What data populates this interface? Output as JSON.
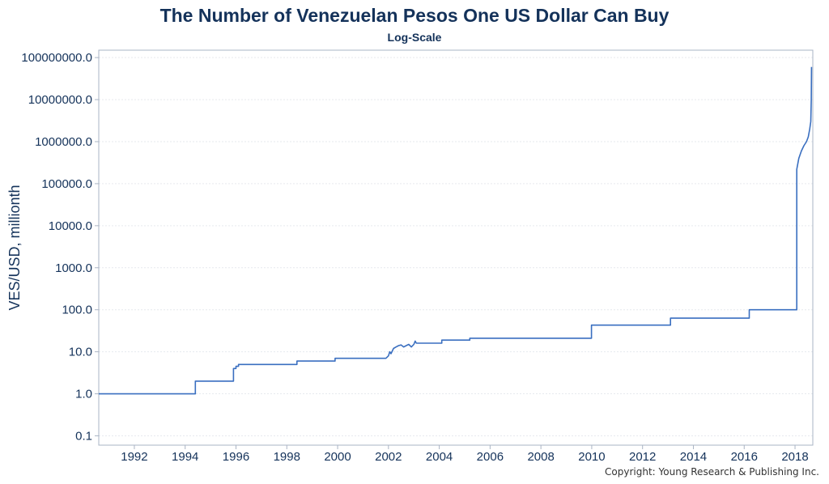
{
  "chart_data": {
    "type": "line",
    "title": "The Number of Venezuelan Pesos One US Dollar Can Buy",
    "subtitle": "Log-Scale",
    "ylabel": "VES/USD, millionth",
    "xlabel": "",
    "y_scale": "log",
    "ylim": [
      0.06,
      150000000
    ],
    "xlim": [
      1990.6,
      2018.7
    ],
    "grid": true,
    "legend": "none",
    "y_ticks": [
      0.1,
      1,
      10,
      100,
      1000,
      10000,
      100000,
      1000000,
      10000000,
      100000000
    ],
    "y_tick_labels": [
      "0.1",
      "1.0",
      "10.0",
      "100.0",
      "1000.0",
      "10000.0",
      "100000.0",
      "1000000.0",
      "10000000.0",
      "100000000.0"
    ],
    "x_ticks": [
      1992,
      1994,
      1996,
      1998,
      2000,
      2002,
      2004,
      2006,
      2008,
      2010,
      2012,
      2014,
      2016,
      2018
    ],
    "x_tick_labels": [
      "1992",
      "1994",
      "1996",
      "1998",
      "2000",
      "2002",
      "2004",
      "2006",
      "2008",
      "2010",
      "2012",
      "2014",
      "2016",
      "2018"
    ],
    "line_color": "#3a6fc0",
    "series": [
      {
        "x": [
          1990.6,
          1994.4,
          1994.4,
          1995.9,
          1995.9,
          1996.0,
          1996.0,
          1996.1,
          1996.1,
          1998.4,
          1998.4,
          1999.9,
          1999.9,
          2001.9,
          2002.0,
          2002.05,
          2002.1,
          2002.2,
          2002.3,
          2002.4,
          2002.5,
          2002.6,
          2002.7,
          2002.8,
          2002.9,
          2003.0,
          2003.05,
          2003.1,
          2004.1,
          2004.1,
          2005.2,
          2005.2,
          2005.5,
          2006.0,
          2006.5,
          2007.0,
          2007.5,
          2008.0,
          2008.5,
          2009.0,
          2009.99,
          2009.99,
          2013.1,
          2013.1,
          2016.2,
          2016.2,
          2017.0,
          2017.8,
          2018.07,
          2018.07,
          2018.15,
          2018.25,
          2018.35,
          2018.45,
          2018.52,
          2018.58,
          2018.62,
          2018.64,
          2018.65
        ],
        "y": [
          1.0,
          1.0,
          2.0,
          2.0,
          4.0,
          4.0,
          4.5,
          4.5,
          5.0,
          5.0,
          6.0,
          6.0,
          7.0,
          7.0,
          8.0,
          10.0,
          9.0,
          12.0,
          13.0,
          14.0,
          14.5,
          13.0,
          14.0,
          15.0,
          13.0,
          15.0,
          18.0,
          16.0,
          16.0,
          19.0,
          19.0,
          21.0,
          21.0,
          21.0,
          21.0,
          21.0,
          21.0,
          21.0,
          21.0,
          21.0,
          21.0,
          43.0,
          43.0,
          63.0,
          63.0,
          100.0,
          100.0,
          100.0,
          100.0,
          220000.0,
          400000.0,
          600000.0,
          800000.0,
          1000000.0,
          1300000.0,
          2000000.0,
          3000000.0,
          10000000.0,
          60000000.0
        ]
      }
    ]
  },
  "copyright": "Copyright: Young Research & Publishing Inc."
}
